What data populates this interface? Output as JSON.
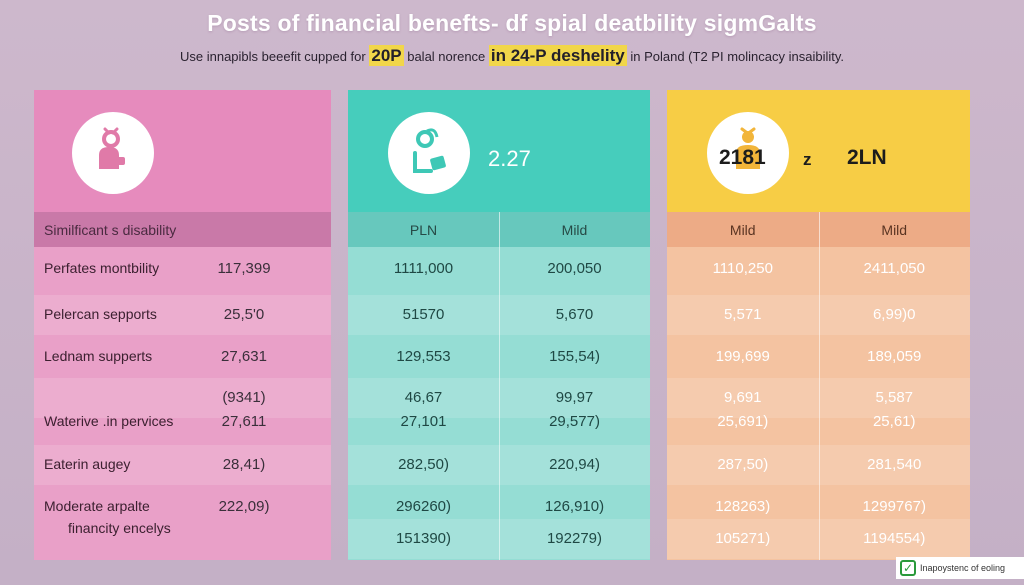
{
  "header": {
    "title": "Posts of financial benefts- df spial deatbility sigmGalts",
    "subtitle_parts": {
      "pre": "Use innapibls beeefit cupped for ",
      "big1": "20P",
      "mid": " balal norence ",
      "big2": "in 24-P deshelity",
      "post": " in Poland (T2 PI molincacy insaibility."
    }
  },
  "panels": {
    "pink": {
      "header_label": "Similficant s disability",
      "rows": [
        {
          "label": "Perfates montbility",
          "value": "117,399"
        },
        {
          "label": "Pelercan sepports",
          "value": "25,5'0"
        },
        {
          "label": "Lednam supperts",
          "value": "27,631"
        },
        {
          "label": "",
          "value": "(9341)"
        },
        {
          "label": "Waterive .in pervices",
          "value": "27,611"
        },
        {
          "label": "Eaterin augey",
          "value": "28,41)"
        },
        {
          "label": "Moderate arpalte",
          "value": "222,09)"
        },
        {
          "label": "financity encelys",
          "value": ""
        }
      ]
    },
    "teal": {
      "head_value": "2.27",
      "col1": "PLN",
      "col2": "Mild",
      "rows": [
        {
          "c1": "1111,000",
          "c2": "200,050"
        },
        {
          "c1": "51570",
          "c2": "5,670"
        },
        {
          "c1": "129,553",
          "c2": "155,54)"
        },
        {
          "c1": "46,67",
          "c2": "99,97"
        },
        {
          "c1": "27,101",
          "c2": "29,577)"
        },
        {
          "c1": "282,50)",
          "c2": "220,94)"
        },
        {
          "c1": "296260)",
          "c2": "126,910)"
        },
        {
          "c1": "151390)",
          "c2": "192279)"
        }
      ]
    },
    "gold": {
      "head_value_a": "2181",
      "head_sep": "z",
      "head_value_b": "2LN",
      "col1": "Mild",
      "col2": "Mild",
      "rows": [
        {
          "c1": "1110,250",
          "c2": "2411,050"
        },
        {
          "c1": "5,571",
          "c2": "6,99)0"
        },
        {
          "c1": "199,699",
          "c2": "189,059"
        },
        {
          "c1": "9,691",
          "c2": "5,587"
        },
        {
          "c1": "25,691)",
          "c2": "25,61)"
        },
        {
          "c1": "287,50)",
          "c2": "281,540"
        },
        {
          "c1": "128263)",
          "c2": "1299767)"
        },
        {
          "c1": "105271)",
          "c2": "1194554)"
        }
      ]
    }
  },
  "badge": {
    "text": "Inapoystenc of eoling",
    "icon": "check-icon"
  },
  "colors": {
    "pink": "#e78fbf",
    "teal": "#46cdbc",
    "gold": "#f7cd45",
    "peach": "#f4c3a1"
  }
}
